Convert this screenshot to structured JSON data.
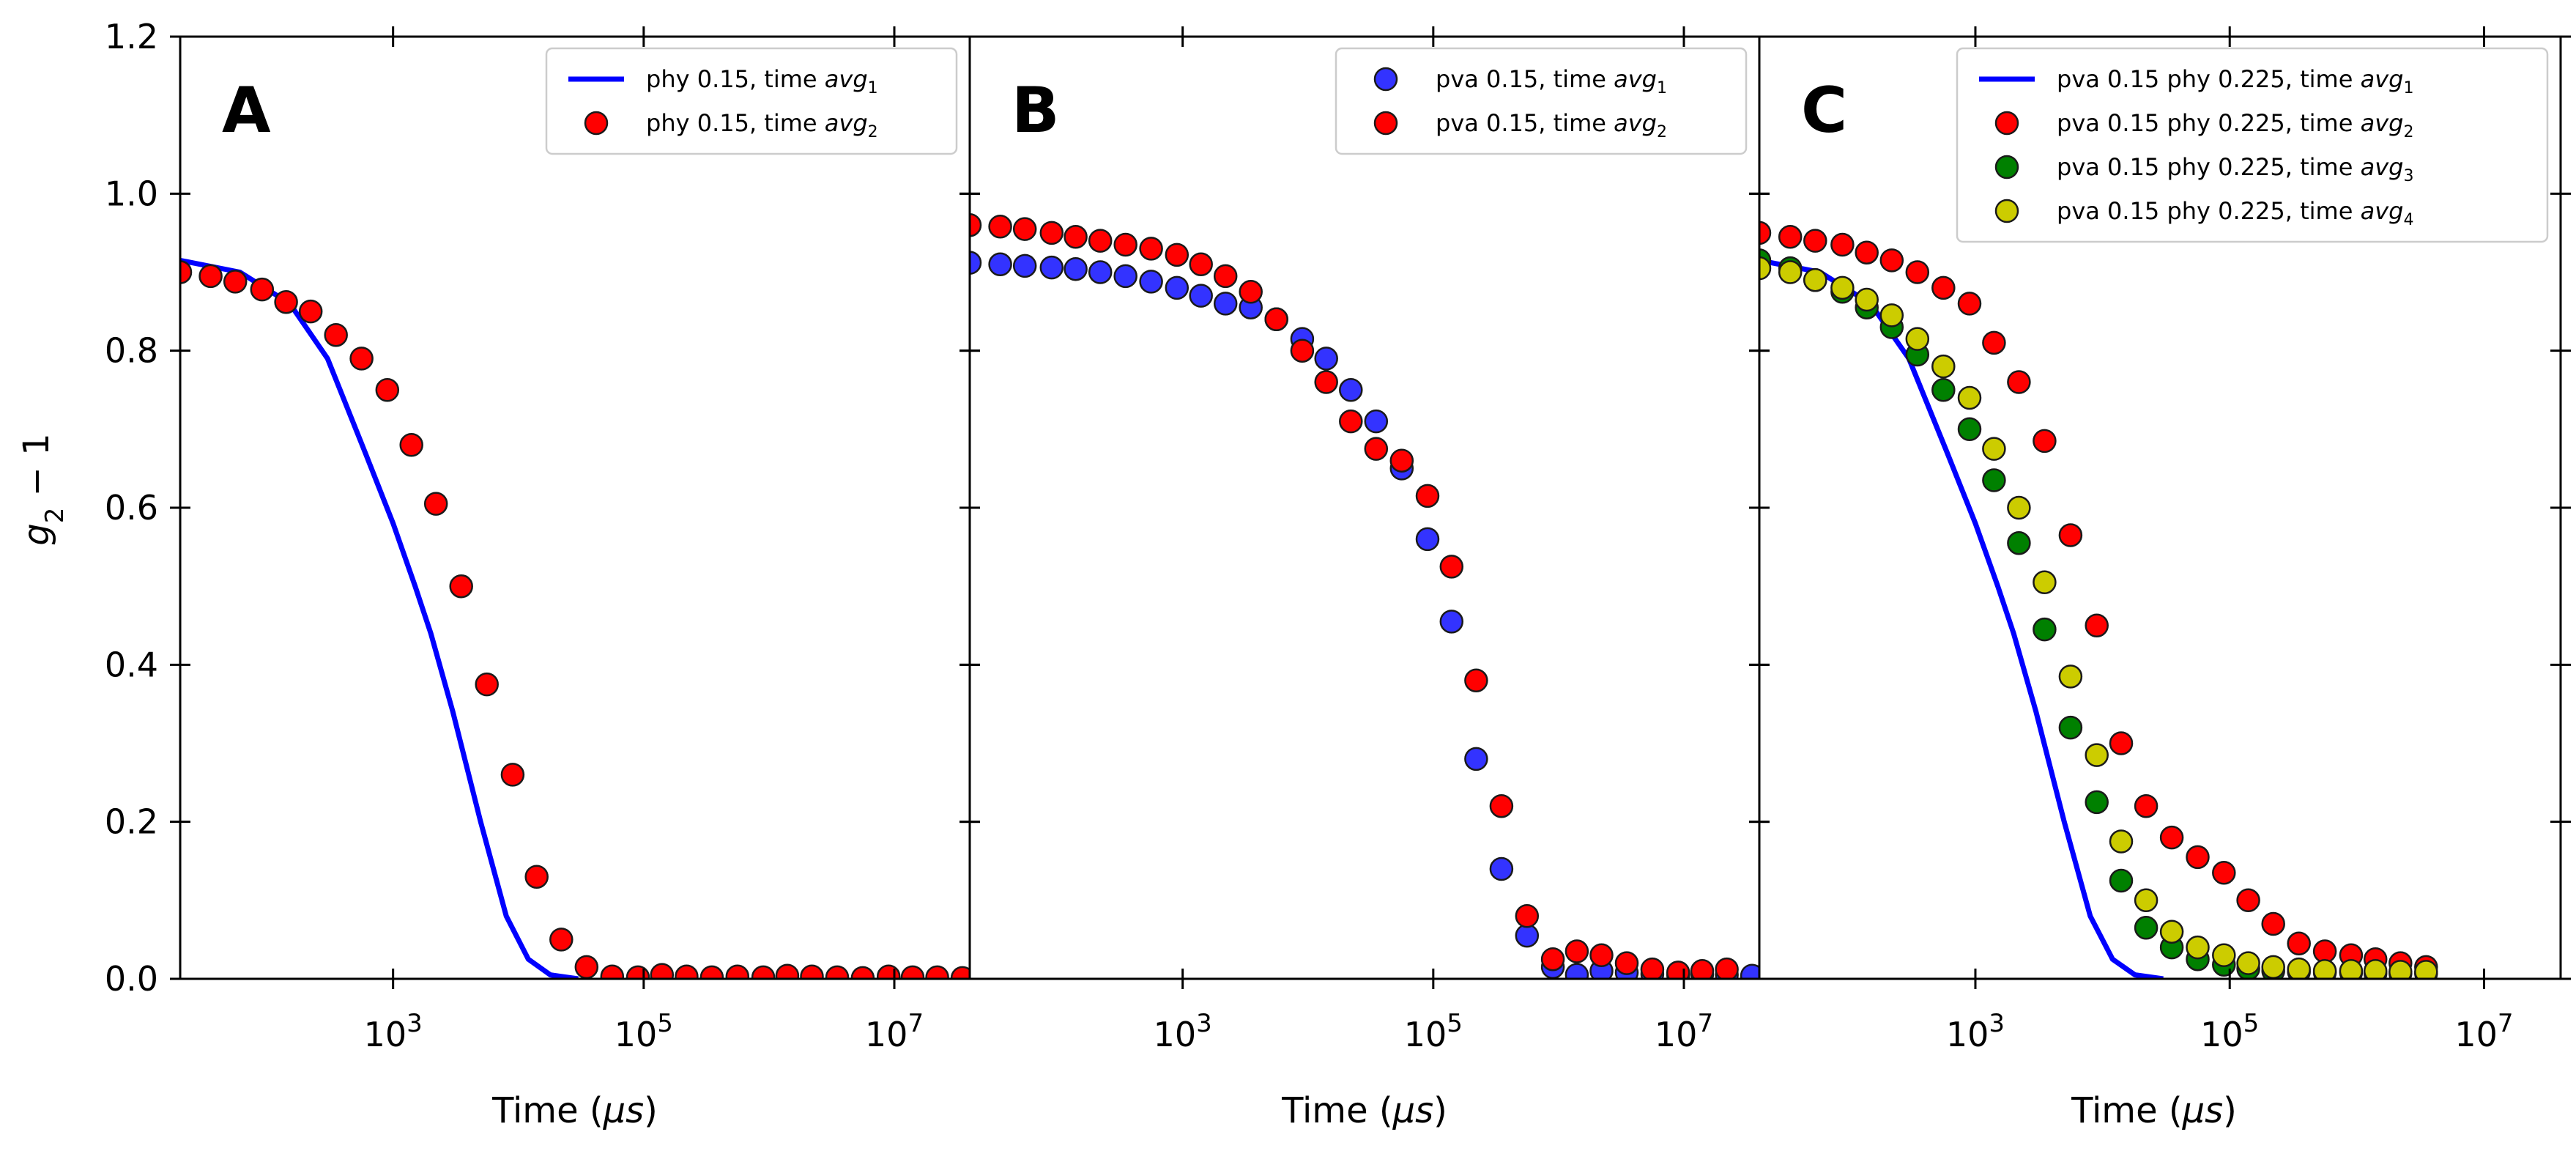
{
  "figure": {
    "y_label_main": "g",
    "y_label_sub": "2",
    "y_label_rest": " − 1",
    "x_label_prefix": "Time (",
    "x_label_mu": "μs",
    "x_label_suffix": ")"
  },
  "chart_data": [
    {
      "type": "scatter",
      "panel": "A",
      "xscale": "log",
      "xlim": [
        20,
        40000000
      ],
      "ylim": [
        0.0,
        1.2
      ],
      "xticks": [
        1000,
        100000,
        10000000
      ],
      "xtick_labels": [
        {
          "base": "10",
          "exp": "3"
        },
        {
          "base": "10",
          "exp": "5"
        },
        {
          "base": "10",
          "exp": "7"
        }
      ],
      "yticks": [
        0.0,
        0.2,
        0.4,
        0.6,
        0.8,
        1.0,
        1.2
      ],
      "ytick_labels": [
        "0.0",
        "0.2",
        "0.4",
        "0.6",
        "0.8",
        "1.0",
        "1.2"
      ],
      "legend_position": "top-right",
      "series": [
        {
          "name": "phy 0.15, time avg1",
          "name_text": "phy 0.15, time ",
          "name_italic": "avg",
          "name_sub": "1",
          "kind": "line",
          "color": "#0000ff",
          "x": [
            20,
            60,
            150,
            300,
            600,
            1000,
            1500,
            2000,
            3000,
            5000,
            8000,
            12000,
            18000,
            30000
          ],
          "y": [
            0.915,
            0.9,
            0.86,
            0.79,
            0.67,
            0.58,
            0.5,
            0.44,
            0.34,
            0.2,
            0.08,
            0.025,
            0.005,
            0.0
          ]
        },
        {
          "name": "phy 0.15, time avg2",
          "name_text": "phy 0.15, time ",
          "name_italic": "avg",
          "name_sub": "2",
          "kind": "markers",
          "color": "#ff0000",
          "x": [
            20,
            35,
            55,
            90,
            140,
            220,
            350,
            560,
            900,
            1400,
            2200,
            3500,
            5600,
            9000,
            14000,
            22000,
            35000,
            56000,
            90000,
            140000,
            220000,
            350000,
            560000,
            900000,
            1400000,
            2200000,
            3500000,
            5600000,
            9000000,
            14000000,
            22000000,
            35000000
          ],
          "y": [
            0.9,
            0.895,
            0.888,
            0.878,
            0.862,
            0.85,
            0.82,
            0.79,
            0.75,
            0.68,
            0.605,
            0.5,
            0.375,
            0.26,
            0.13,
            0.05,
            0.015,
            0.003,
            0.002,
            0.005,
            0.003,
            0.002,
            0.003,
            0.002,
            0.004,
            0.003,
            0.002,
            0.001,
            0.003,
            0.002,
            0.002,
            0.001
          ]
        }
      ]
    },
    {
      "type": "scatter",
      "panel": "B",
      "xscale": "log",
      "xlim": [
        20,
        40000000
      ],
      "ylim": [
        0.0,
        1.2
      ],
      "xticks": [
        1000,
        100000,
        10000000
      ],
      "xtick_labels": [
        {
          "base": "10",
          "exp": "3"
        },
        {
          "base": "10",
          "exp": "5"
        },
        {
          "base": "10",
          "exp": "7"
        }
      ],
      "yticks": [
        0.0,
        0.2,
        0.4,
        0.6,
        0.8,
        1.0,
        1.2
      ],
      "ytick_labels": [
        "",
        "",
        "",
        "",
        "",
        "",
        ""
      ],
      "legend_position": "top-right",
      "series": [
        {
          "name": "pva 0.15, time avg1",
          "name_text": "pva 0.15, time ",
          "name_italic": "avg",
          "name_sub": "1",
          "kind": "markers",
          "color": "#3333ff",
          "x": [
            20,
            35,
            55,
            90,
            140,
            220,
            350,
            560,
            900,
            1400,
            2200,
            3500,
            5600,
            9000,
            14000,
            22000,
            35000,
            56000,
            90000,
            140000,
            220000,
            350000,
            560000,
            900000,
            1400000,
            2200000,
            3500000,
            5600000,
            9000000,
            14000000,
            22000000,
            35000000
          ],
          "y": [
            0.912,
            0.91,
            0.908,
            0.906,
            0.904,
            0.9,
            0.895,
            0.888,
            0.88,
            0.87,
            0.86,
            0.855,
            0.84,
            0.815,
            0.79,
            0.75,
            0.71,
            0.65,
            0.56,
            0.455,
            0.28,
            0.14,
            0.055,
            0.015,
            0.005,
            0.01,
            0.008,
            0.006,
            0.005,
            0.006,
            0.005,
            0.004
          ]
        },
        {
          "name": "pva 0.15, time avg2",
          "name_text": "pva 0.15, time ",
          "name_italic": "avg",
          "name_sub": "2",
          "kind": "markers",
          "color": "#ff0000",
          "x": [
            20,
            35,
            55,
            90,
            140,
            220,
            350,
            560,
            900,
            1400,
            2200,
            3500,
            5600,
            9000,
            14000,
            22000,
            35000,
            56000,
            90000,
            140000,
            220000,
            350000,
            560000,
            900000,
            1400000,
            2200000,
            3500000,
            5600000,
            9000000,
            14000000,
            22000000
          ],
          "y": [
            0.96,
            0.958,
            0.955,
            0.95,
            0.945,
            0.94,
            0.935,
            0.93,
            0.922,
            0.91,
            0.895,
            0.875,
            0.84,
            0.8,
            0.76,
            0.71,
            0.675,
            0.66,
            0.615,
            0.525,
            0.38,
            0.22,
            0.08,
            0.025,
            0.035,
            0.03,
            0.02,
            0.012,
            0.008,
            0.01,
            0.012
          ]
        }
      ]
    },
    {
      "type": "scatter",
      "panel": "C",
      "xscale": "log",
      "xlim": [
        20,
        40000000
      ],
      "ylim": [
        0.0,
        1.2
      ],
      "xticks": [
        1000,
        100000,
        10000000
      ],
      "xtick_labels": [
        {
          "base": "10",
          "exp": "3"
        },
        {
          "base": "10",
          "exp": "5"
        },
        {
          "base": "10",
          "exp": "7"
        }
      ],
      "yticks": [
        0.0,
        0.2,
        0.4,
        0.6,
        0.8,
        1.0,
        1.2
      ],
      "ytick_labels": [
        "",
        "",
        "",
        "",
        "",
        "",
        ""
      ],
      "legend_position": "top-right",
      "series": [
        {
          "name": "pva 0.15 phy 0.225, time avg1",
          "name_text": "pva 0.15 phy 0.225, time ",
          "name_italic": "avg",
          "name_sub": "1",
          "kind": "line",
          "color": "#0000ff",
          "x": [
            20,
            60,
            150,
            300,
            600,
            1000,
            1500,
            2000,
            3000,
            5000,
            8000,
            12000,
            18000,
            30000
          ],
          "y": [
            0.915,
            0.9,
            0.86,
            0.79,
            0.67,
            0.58,
            0.5,
            0.44,
            0.34,
            0.2,
            0.08,
            0.025,
            0.005,
            0.0
          ]
        },
        {
          "name": "pva 0.15 phy 0.225, time avg2",
          "name_text": "pva 0.15 phy 0.225, time ",
          "name_italic": "avg",
          "name_sub": "2",
          "kind": "markers",
          "color": "#ff0000",
          "x": [
            20,
            35,
            55,
            90,
            140,
            220,
            350,
            560,
            900,
            1400,
            2200,
            3500,
            5600,
            9000,
            14000,
            22000,
            35000,
            56000,
            90000,
            140000,
            220000,
            350000,
            560000,
            900000,
            1400000,
            2200000,
            3500000
          ],
          "y": [
            0.95,
            0.945,
            0.94,
            0.935,
            0.925,
            0.915,
            0.9,
            0.88,
            0.86,
            0.81,
            0.76,
            0.685,
            0.565,
            0.45,
            0.3,
            0.22,
            0.18,
            0.155,
            0.135,
            0.1,
            0.07,
            0.045,
            0.035,
            0.03,
            0.025,
            0.02,
            0.015
          ]
        },
        {
          "name": "pva 0.15 phy 0.225, time avg3",
          "name_text": "pva 0.15 phy 0.225, time ",
          "name_italic": "avg",
          "name_sub": "3",
          "kind": "markers",
          "color": "#008000",
          "x": [
            20,
            35,
            55,
            90,
            140,
            220,
            350,
            560,
            900,
            1400,
            2200,
            3500,
            5600,
            9000,
            14000,
            22000,
            35000,
            56000,
            90000,
            140000,
            220000,
            350000,
            560000,
            900000,
            1400000,
            2200000,
            3500000
          ],
          "y": [
            0.915,
            0.905,
            0.89,
            0.875,
            0.855,
            0.83,
            0.795,
            0.75,
            0.7,
            0.635,
            0.555,
            0.445,
            0.32,
            0.225,
            0.125,
            0.065,
            0.04,
            0.025,
            0.018,
            0.013,
            0.01,
            0.009,
            0.008,
            0.008,
            0.007,
            0.007,
            0.007
          ]
        },
        {
          "name": "pva 0.15 phy 0.225, time avg4",
          "name_text": "pva 0.15 phy 0.225, time ",
          "name_italic": "avg",
          "name_sub": "4",
          "kind": "markers",
          "color": "#cccc00",
          "x": [
            20,
            35,
            55,
            90,
            140,
            220,
            350,
            560,
            900,
            1400,
            2200,
            3500,
            5600,
            9000,
            14000,
            22000,
            35000,
            56000,
            90000,
            140000,
            220000,
            350000,
            560000,
            900000,
            1400000,
            2200000,
            3500000
          ],
          "y": [
            0.905,
            0.9,
            0.89,
            0.88,
            0.865,
            0.845,
            0.815,
            0.78,
            0.74,
            0.675,
            0.6,
            0.505,
            0.385,
            0.285,
            0.175,
            0.1,
            0.06,
            0.04,
            0.03,
            0.02,
            0.015,
            0.012,
            0.01,
            0.01,
            0.01,
            0.009,
            0.009
          ]
        }
      ]
    }
  ]
}
